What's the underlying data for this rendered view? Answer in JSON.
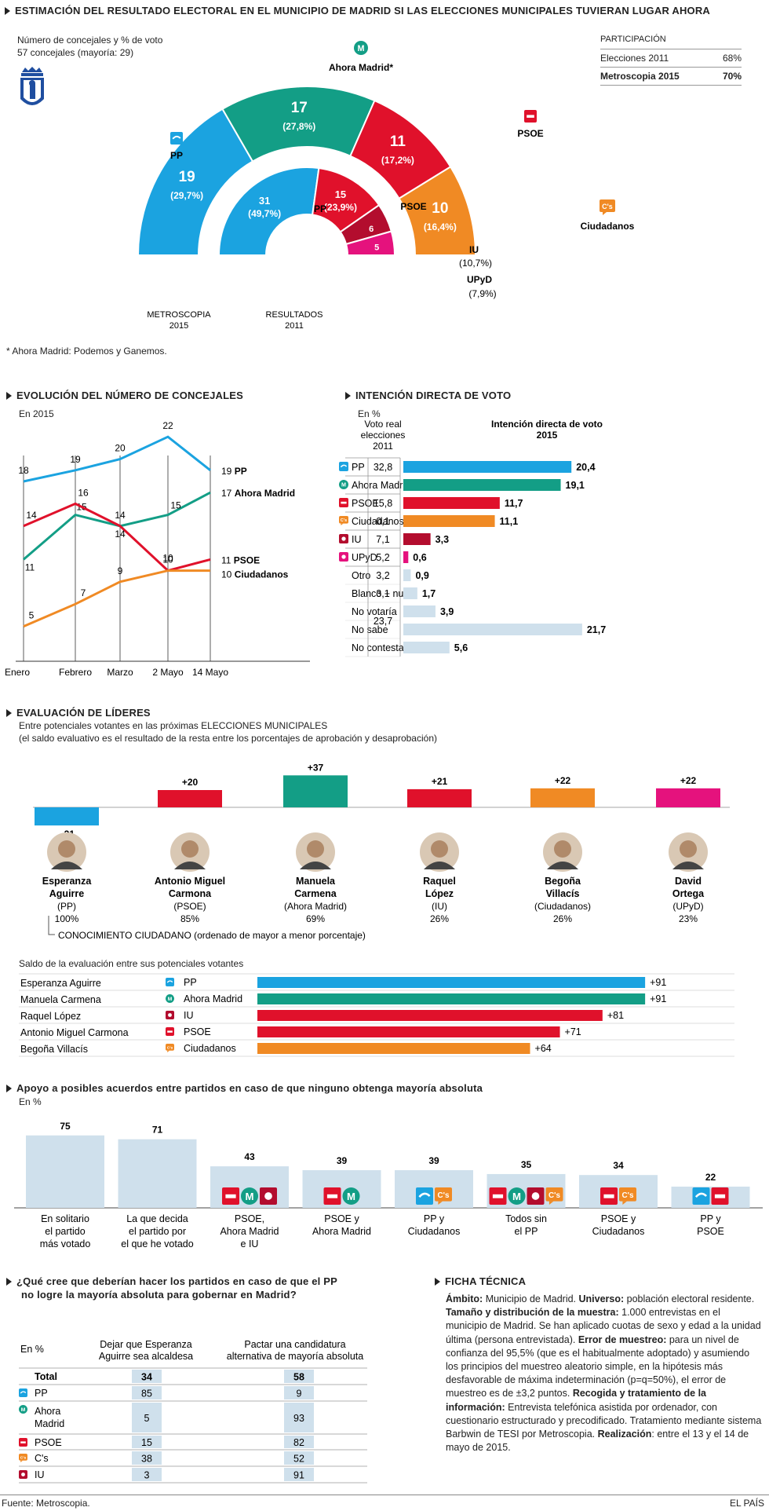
{
  "header": {
    "title": "ESTIMACIÓN DEL RESULTADO ELECTORAL EN EL MUNICIPIO DE MADRID SI LAS ELECCIONES MUNICIPALES TUVIERAN LUGAR AHORA",
    "sub1": "Número de concejales y % de voto",
    "sub2": "57 concejales (mayoría: 29)",
    "footnote": "* Ahora Madrid: Podemos y Ganemos."
  },
  "participacion": {
    "title": "PARTICIPACIÓN",
    "rows": [
      {
        "label": "Elecciones 2011",
        "value": "68%"
      },
      {
        "label": "Metroscopia 2015",
        "value": "70%"
      }
    ]
  },
  "hemi": {
    "outer_label": [
      "METROSCOPIA",
      "2015"
    ],
    "inner_label": [
      "RESULTADOS",
      "2011"
    ],
    "outer": [
      {
        "party": "PP",
        "seats": 19,
        "pct": "(29,7%)",
        "color": "#1ba3e0"
      },
      {
        "party": "Ahora Madrid*",
        "seats": 17,
        "pct": "(27,8%)",
        "color": "#139e86"
      },
      {
        "party": "PSOE",
        "seats": 11,
        "pct": "(17,2%)",
        "color": "#e0112b"
      },
      {
        "party": "Ciudadanos",
        "seats": 10,
        "pct": "(16,4%)",
        "color": "#f08a24"
      }
    ],
    "inner": [
      {
        "party": "PP",
        "seats": 31,
        "pct": "(49,7%)",
        "color": "#1ba3e0"
      },
      {
        "party": "PSOE",
        "seats": 15,
        "pct": "(23,9%)",
        "color": "#e0112b"
      },
      {
        "party": "IU",
        "seats": 6,
        "pct": "(10,7%)",
        "color": "#b30d2e"
      },
      {
        "party": "UPyD",
        "seats": 5,
        "pct": "(7,9%)",
        "color": "#e5127d"
      }
    ]
  },
  "evolucion": {
    "title": "EVOLUCIÓN DEL NÚMERO DE CONCEJALES",
    "subtitle": "En 2015"
  },
  "intencion": {
    "title": "INTENCIÓN DIRECTA DE VOTO",
    "subtitle": "En %",
    "col1": [
      "Voto real",
      "elecciones",
      "2011"
    ],
    "col2": [
      "Intención directa de voto",
      "2015"
    ]
  },
  "lideres": {
    "title": "EVALUACIÓN DE LÍDERES",
    "sub1": "Entre potenciales votantes en las próximas ELECCIONES MUNICIPALES",
    "sub2": "(el saldo evaluativo es el resultado de la resta entre los porcentajes de aprobación y desaprobación)",
    "conocimiento": "CONOCIMIENTO CIUDADANO (ordenado de mayor a menor porcentaje)",
    "saldo_title": "Saldo de la evaluación entre sus potenciales votantes",
    "leaders": [
      {
        "name1": "Esperanza",
        "name2": "Aguirre",
        "party": "(PP)",
        "pct": "100%",
        "saldo": "–21",
        "value": -21,
        "color": "#1ba3e0"
      },
      {
        "name1": "Antonio Miguel",
        "name2": "Carmona",
        "party": "(PSOE)",
        "pct": "85%",
        "saldo": "+20",
        "value": 20,
        "color": "#e0112b"
      },
      {
        "name1": "Manuela",
        "name2": "Carmena",
        "party": "(Ahora Madrid)",
        "pct": "69%",
        "saldo": "+37",
        "value": 37,
        "color": "#139e86"
      },
      {
        "name1": "Raquel",
        "name2": "López",
        "party": "(IU)",
        "pct": "26%",
        "saldo": "+21",
        "value": 21,
        "color": "#e0112b"
      },
      {
        "name1": "Begoña",
        "name2": "Villacís",
        "party": "(Ciudadanos)",
        "pct": "26%",
        "saldo": "+22",
        "value": 22,
        "color": "#f08a24"
      },
      {
        "name1": "David",
        "name2": "Ortega",
        "party": "(UPyD)",
        "pct": "23%",
        "saldo": "+22",
        "value": 22,
        "color": "#e5127d"
      }
    ],
    "saldo_rows": [
      {
        "name": "Esperanza Aguirre",
        "party": "PP",
        "label": "+91",
        "value": 91,
        "color": "#1ba3e0"
      },
      {
        "name": "Manuela Carmena",
        "party": "Ahora Madrid",
        "label": "+91",
        "value": 91,
        "color": "#139e86"
      },
      {
        "name": "Raquel López",
        "party": "IU",
        "label": "+81",
        "value": 81,
        "color": "#e0112b"
      },
      {
        "name": "Antonio Miguel Carmona",
        "party": "PSOE",
        "label": "+71",
        "value": 71,
        "color": "#e0112b"
      },
      {
        "name": "Begoña Villacís",
        "party": "Ciudadanos",
        "label": "+64",
        "value": 64,
        "color": "#f08a24"
      }
    ]
  },
  "apoyo": {
    "title": "Apoyo a posibles acuerdos entre partidos en caso de que ninguno obtenga mayoría absoluta",
    "subtitle": "En %"
  },
  "pregunta": {
    "title1": "¿Qué cree que deberían hacer los partidos en caso de que el PP",
    "title2": "no logre la mayoría absoluta para gobernar en Madrid?",
    "unit": "En %",
    "colA": [
      "Dejar que Esperanza",
      "Aguirre sea alcaldesa"
    ],
    "colB": [
      "Pactar una candidatura",
      "alternativa de mayoría absoluta"
    ],
    "rows": [
      {
        "label": "Total",
        "a": "34",
        "b": "58",
        "bold": true,
        "icon": ""
      },
      {
        "label": "PP",
        "a": "85",
        "b": "9",
        "bold": false,
        "icon": "pp"
      },
      {
        "label": "Ahora Madrid",
        "a": "5",
        "b": "93",
        "bold": false,
        "icon": "am"
      },
      {
        "label": "PSOE",
        "a": "15",
        "b": "82",
        "bold": false,
        "icon": "psoe"
      },
      {
        "label": "C's",
        "a": "38",
        "b": "52",
        "bold": false,
        "icon": "cs"
      },
      {
        "label": "IU",
        "a": "3",
        "b": "91",
        "bold": false,
        "icon": "iu"
      }
    ]
  },
  "ficha": {
    "title": "FICHA TÉCNICA",
    "parts": [
      {
        "b": "Ámbito:",
        "t": " Municipio de Madrid. "
      },
      {
        "b": "Universo:",
        "t": " población electoral residente. "
      },
      {
        "b": "Tamaño y distribución de la muestra:",
        "t": " 1.000 entrevistas en el municipio de Madrid. Se han aplicado cuotas de sexo y edad a la unidad última (persona entrevistada). "
      },
      {
        "b": "Error de muestreo:",
        "t": " para un nivel de confianza del 95,5% (que es el habitualmente adoptado) y asumiendo los principios del muestreo aleatorio simple, en la hipótesis más desfavorable de máxima indeterminación (p=q=50%), el error de muestreo es de ±3,2 puntos. "
      },
      {
        "b": "Recogida y tratamiento de la información:",
        "t": " Entrevista telefónica asistida por ordenador, con cuestionario estructurado y precodificado. Tratamiento mediante sistema Barbwin de TESI por Metroscopia. "
      },
      {
        "b": "Realización",
        "t": ": entre el 13 y el 14 de mayo de 2015."
      }
    ]
  },
  "footer": {
    "source": "Fuente: Metroscopia.",
    "brand": "EL PAÍS"
  },
  "chart_data": [
    {
      "type": "pie",
      "title": "ESTIMACIÓN DEL RESULTADO ELECTORAL EN EL MUNICIPIO DE MADRID SI LAS ELECCIONES MUNICIPALES TUVIERAN LUGAR AHORA",
      "series": [
        {
          "name": "METROSCOPIA 2015",
          "categories": [
            "PP",
            "Ahora Madrid*",
            "PSOE",
            "Ciudadanos"
          ],
          "values": [
            19,
            17,
            11,
            10
          ],
          "pct": [
            29.7,
            27.8,
            17.2,
            16.4
          ]
        },
        {
          "name": "RESULTADOS 2011",
          "categories": [
            "PP",
            "PSOE",
            "IU",
            "UPyD"
          ],
          "values": [
            31,
            15,
            6,
            5
          ],
          "pct": [
            49.7,
            23.9,
            10.7,
            7.9
          ]
        }
      ]
    },
    {
      "type": "line",
      "title": "EVOLUCIÓN DEL NÚMERO DE CONCEJALES",
      "categories": [
        "Enero",
        "Febrero",
        "Marzo",
        "2 Mayo",
        "14 Mayo"
      ],
      "series": [
        {
          "name": "PP",
          "values": [
            18,
            19,
            20,
            22,
            19
          ],
          "color": "#1ba3e0"
        },
        {
          "name": "Ahora Madrid",
          "values": [
            11,
            15,
            14,
            15,
            17
          ],
          "color": "#139e86"
        },
        {
          "name": "PSOE",
          "values": [
            14,
            16,
            14,
            10,
            11
          ],
          "color": "#e0112b"
        },
        {
          "name": "Ciudadanos",
          "values": [
            5,
            7,
            9,
            10,
            10
          ],
          "color": "#f08a24"
        }
      ],
      "ylim": [
        3,
        24
      ]
    },
    {
      "type": "bar",
      "title": "INTENCIÓN DIRECTA DE VOTO",
      "categories": [
        "PP",
        "Ahora Madrid",
        "PSOE",
        "Ciudadanos",
        "IU",
        "UPyD",
        "Otro",
        "Blanco + nulos",
        "No votaría",
        "No sabe",
        "No contesta"
      ],
      "icons": [
        "pp",
        "am",
        "psoe",
        "cs",
        "iu",
        "upyd",
        "",
        "",
        "",
        "",
        ""
      ],
      "voto_2011": [
        "32,8",
        "",
        "15,8",
        "0,1",
        "7,1",
        "5,2",
        "3,2",
        "3,1",
        "",
        "23,7",
        ""
      ],
      "values": [
        20.4,
        19.1,
        11.7,
        11.1,
        3.3,
        0.6,
        0.9,
        1.7,
        3.9,
        21.7,
        5.6
      ],
      "labels": [
        "20,4",
        "19,1",
        "11,7",
        "11,1",
        "3,3",
        "0,6",
        "0,9",
        "1,7",
        "3,9",
        "21,7",
        "5,6"
      ],
      "colors": [
        "#1ba3e0",
        "#139e86",
        "#e0112b",
        "#f08a24",
        "#b30d2e",
        "#e5127d",
        "#cfe0ec",
        "#cfe0ec",
        "#cfe0ec",
        "#cfe0ec",
        "#cfe0ec"
      ]
    },
    {
      "type": "bar",
      "title": "Apoyo a posibles acuerdos entre partidos en caso de que ninguno obtenga mayoría absoluta",
      "categories": [
        "En solitario el partido más votado",
        "La que decida el partido por el que he votado",
        "PSOE, Ahora Madrid e IU",
        "PSOE y Ahora Madrid",
        "PP y Ciudadanos",
        "Todos sin el PP",
        "PSOE y Ciudadanos",
        "PP y PSOE"
      ],
      "cat_lines": [
        [
          "En solitario",
          "el partido",
          "más votado"
        ],
        [
          "La que decida",
          "el partido por",
          "el que he votado"
        ],
        [
          "PSOE,",
          "Ahora Madrid",
          "e IU"
        ],
        [
          "PSOE y",
          "Ahora Madrid"
        ],
        [
          "PP y",
          "Ciudadanos"
        ],
        [
          "Todos sin",
          "el PP"
        ],
        [
          "PSOE y",
          "Ciudadanos"
        ],
        [
          "PP y",
          "PSOE"
        ]
      ],
      "icons": [
        [],
        [],
        [
          "psoe",
          "am",
          "iu"
        ],
        [
          "psoe",
          "am"
        ],
        [
          "pp",
          "cs"
        ],
        [
          "psoe",
          "am",
          "iu",
          "cs"
        ],
        [
          "psoe",
          "cs"
        ],
        [
          "pp",
          "psoe"
        ]
      ],
      "values": [
        75,
        71,
        43,
        39,
        39,
        35,
        34,
        22
      ]
    }
  ]
}
